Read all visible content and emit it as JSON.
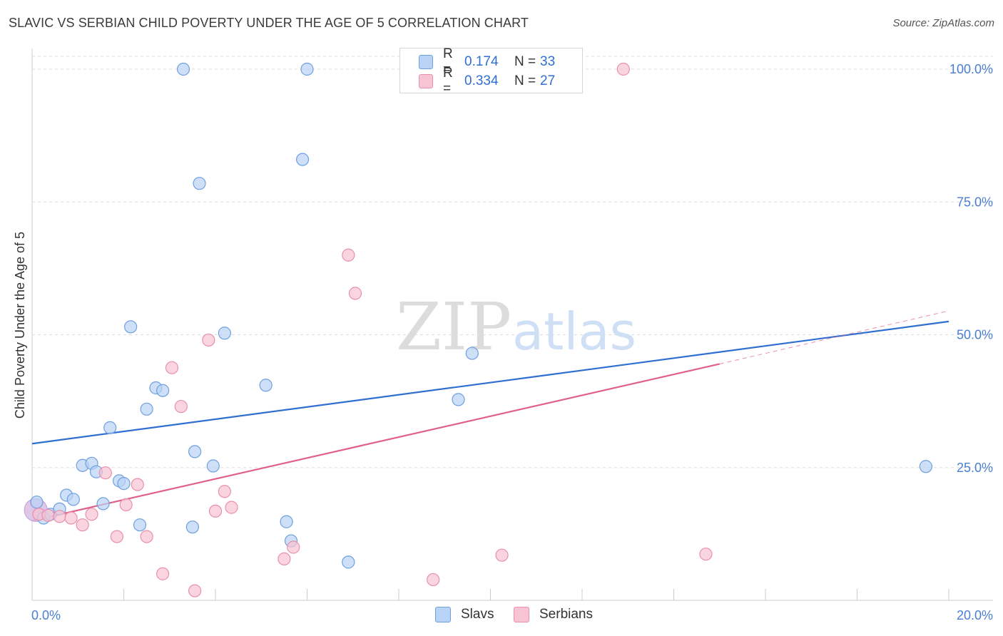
{
  "title": "SLAVIC VS SERBIAN CHILD POVERTY UNDER THE AGE OF 5 CORRELATION CHART",
  "source": "Source: ZipAtlas.com",
  "watermark": {
    "zip": "ZIP",
    "atlas": "atlas"
  },
  "legend": {
    "r_label": "R =",
    "n_label": "N =",
    "series": [
      {
        "name": "Slavs",
        "r": "0.174",
        "n": "33",
        "fill": "#b8d3f5",
        "stroke": "#6f9fdf"
      },
      {
        "name": "Serbians",
        "r": "0.334",
        "n": "27",
        "fill": "#f8c3d3",
        "stroke": "#e98fab"
      }
    ]
  },
  "chart_data": {
    "type": "scatter",
    "title": "SLAVIC VS SERBIAN CHILD POVERTY UNDER THE AGE OF 5 CORRELATION CHART",
    "xlabel": "",
    "ylabel": "Child Poverty Under the Age of 5",
    "xlim": [
      0,
      20
    ],
    "ylim": [
      0,
      102
    ],
    "x_tick_labels": [
      "0.0%",
      "20.0%"
    ],
    "y_ticks": [
      25,
      50,
      75,
      100
    ],
    "y_tick_labels": [
      "25.0%",
      "50.0%",
      "75.0%",
      "100.0%"
    ],
    "grid": true,
    "series": [
      {
        "name": "Slavs",
        "color": "#2f6fd1",
        "points": [
          [
            0.1,
            18.5
          ],
          [
            0.25,
            15.5
          ],
          [
            0.4,
            16.2
          ],
          [
            0.6,
            17.2
          ],
          [
            0.75,
            19.8
          ],
          [
            0.9,
            19.0
          ],
          [
            1.1,
            25.4
          ],
          [
            1.3,
            25.8
          ],
          [
            1.4,
            24.2
          ],
          [
            1.55,
            18.2
          ],
          [
            1.7,
            32.5
          ],
          [
            1.9,
            22.5
          ],
          [
            2.0,
            22.0
          ],
          [
            2.15,
            51.5
          ],
          [
            2.35,
            14.2
          ],
          [
            2.5,
            36.0
          ],
          [
            2.7,
            40.0
          ],
          [
            2.85,
            39.5
          ],
          [
            3.3,
            100.0
          ],
          [
            3.5,
            13.8
          ],
          [
            3.55,
            28.0
          ],
          [
            3.65,
            78.5
          ],
          [
            3.95,
            25.3
          ],
          [
            4.2,
            50.3
          ],
          [
            5.1,
            40.5
          ],
          [
            5.55,
            14.8
          ],
          [
            5.65,
            11.2
          ],
          [
            5.9,
            83.0
          ],
          [
            6.0,
            100.0
          ],
          [
            6.9,
            7.2
          ],
          [
            9.3,
            37.8
          ],
          [
            9.6,
            46.5
          ],
          [
            19.5,
            25.2
          ]
        ],
        "trend": {
          "x": [
            0,
            20
          ],
          "y": [
            29.5,
            52.5
          ],
          "style": "solid"
        }
      },
      {
        "name": "Serbians",
        "color": "#e0608c",
        "points": [
          [
            0.15,
            16.2
          ],
          [
            0.35,
            16.0
          ],
          [
            0.6,
            15.8
          ],
          [
            0.85,
            15.5
          ],
          [
            1.1,
            14.2
          ],
          [
            1.3,
            16.2
          ],
          [
            1.6,
            24.0
          ],
          [
            1.85,
            12.0
          ],
          [
            2.05,
            18.0
          ],
          [
            2.3,
            21.8
          ],
          [
            2.5,
            12.0
          ],
          [
            2.85,
            5.0
          ],
          [
            3.05,
            43.8
          ],
          [
            3.25,
            36.5
          ],
          [
            3.55,
            1.8
          ],
          [
            3.85,
            49.0
          ],
          [
            4.0,
            16.8
          ],
          [
            4.2,
            20.5
          ],
          [
            4.35,
            17.5
          ],
          [
            5.5,
            7.8
          ],
          [
            5.7,
            10.0
          ],
          [
            6.9,
            65.0
          ],
          [
            7.05,
            57.8
          ],
          [
            8.75,
            3.9
          ],
          [
            10.25,
            8.5
          ],
          [
            12.9,
            100.0
          ],
          [
            14.7,
            8.7
          ]
        ],
        "trend": {
          "x": [
            0,
            15
          ],
          "y": [
            15.0,
            44.5
          ],
          "style": "solid",
          "extension": {
            "x": [
              15,
              20
            ],
            "y": [
              44.5,
              54.5
            ],
            "style": "dashed"
          }
        }
      }
    ]
  }
}
